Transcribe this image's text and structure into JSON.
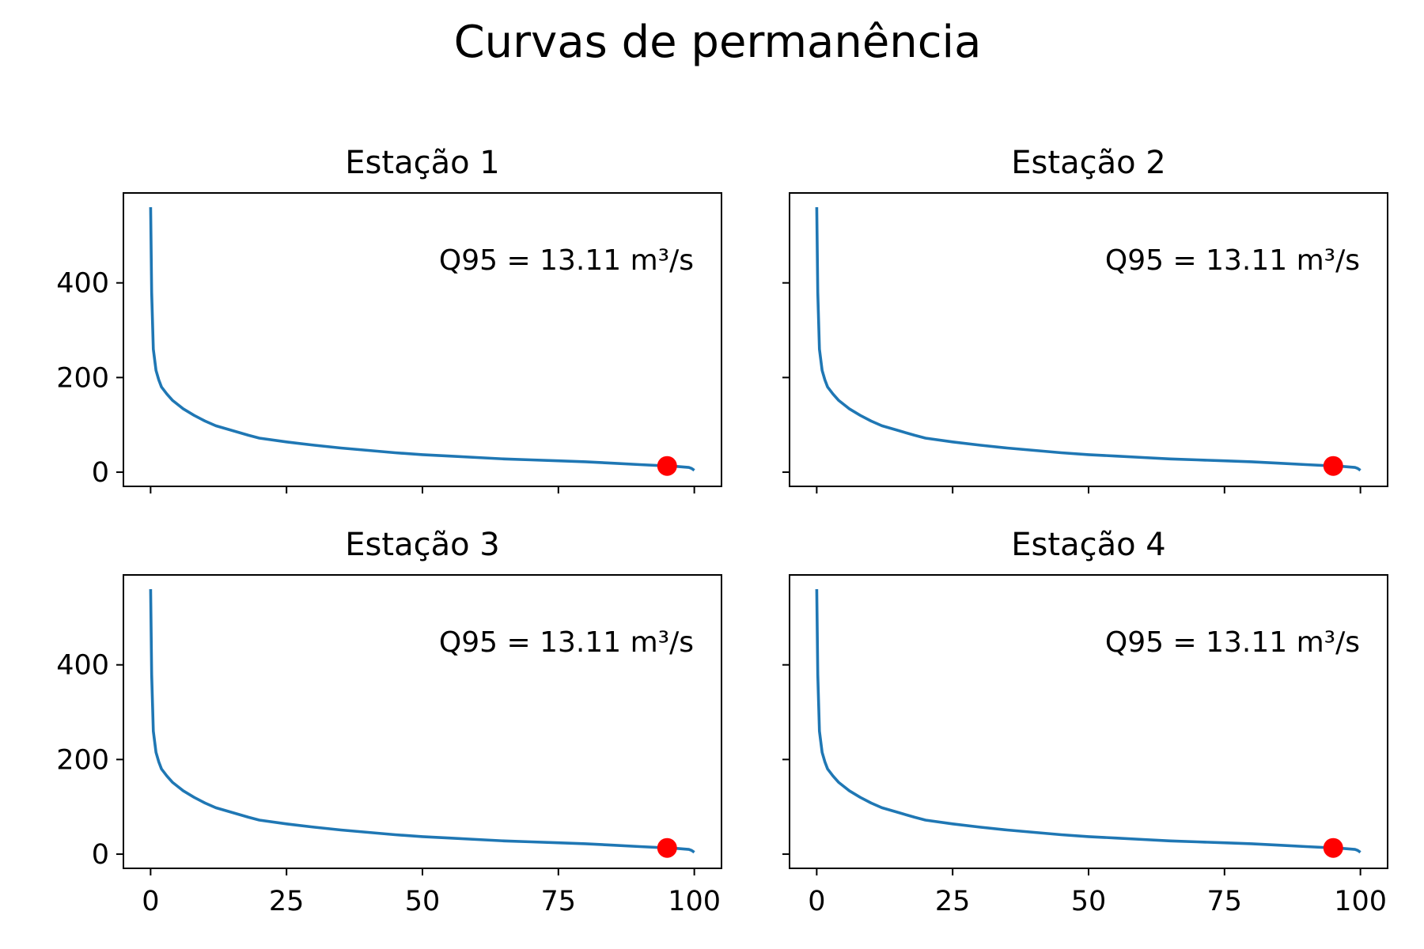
{
  "figure": {
    "title": "Curvas de permanência"
  },
  "chart_data": [
    {
      "type": "line",
      "title": "Estação 1",
      "annotation": "Q95 = 13.11 m³/s",
      "xlabel": "",
      "ylabel": "",
      "xlim": [
        -5,
        105
      ],
      "ylim": [
        -30,
        590
      ],
      "xticks": [
        0,
        25,
        50,
        75,
        100
      ],
      "yticks": [
        0,
        200,
        400
      ],
      "grid": false,
      "series": [
        {
          "color": "#1f77b4",
          "x": [
            0,
            0.2,
            0.5,
            1,
            1.5,
            2,
            3,
            4,
            5,
            6,
            8,
            10,
            12,
            15,
            18,
            20,
            25,
            30,
            35,
            40,
            45,
            50,
            55,
            60,
            65,
            70,
            75,
            80,
            85,
            90,
            95,
            97,
            99,
            99.5,
            100
          ],
          "y": [
            560,
            380,
            260,
            215,
            195,
            180,
            165,
            152,
            143,
            134,
            120,
            108,
            98,
            88,
            78,
            72,
            64,
            57,
            51,
            46,
            41,
            37,
            34,
            31,
            28,
            26,
            24,
            22,
            19,
            16,
            13.11,
            12,
            10,
            8,
            4
          ]
        }
      ],
      "highlight": {
        "x": 95,
        "y": 13.11,
        "color": "#ff0000"
      }
    },
    {
      "type": "line",
      "title": "Estação 2",
      "annotation": "Q95 = 13.11 m³/s",
      "xlabel": "",
      "ylabel": "",
      "xlim": [
        -5,
        105
      ],
      "ylim": [
        -30,
        590
      ],
      "xticks": [
        0,
        25,
        50,
        75,
        100
      ],
      "yticks": [
        0,
        200,
        400
      ],
      "grid": false,
      "series": [
        {
          "color": "#1f77b4",
          "x": [
            0,
            0.2,
            0.5,
            1,
            1.5,
            2,
            3,
            4,
            5,
            6,
            8,
            10,
            12,
            15,
            18,
            20,
            25,
            30,
            35,
            40,
            45,
            50,
            55,
            60,
            65,
            70,
            75,
            80,
            85,
            90,
            95,
            97,
            99,
            99.5,
            100
          ],
          "y": [
            560,
            380,
            260,
            215,
            195,
            180,
            165,
            152,
            143,
            134,
            120,
            108,
            98,
            88,
            78,
            72,
            64,
            57,
            51,
            46,
            41,
            37,
            34,
            31,
            28,
            26,
            24,
            22,
            19,
            16,
            13.11,
            12,
            10,
            8,
            4
          ]
        }
      ],
      "highlight": {
        "x": 95,
        "y": 13.11,
        "color": "#ff0000"
      }
    },
    {
      "type": "line",
      "title": "Estação 3",
      "annotation": "Q95 = 13.11 m³/s",
      "xlabel": "",
      "ylabel": "",
      "xlim": [
        -5,
        105
      ],
      "ylim": [
        -30,
        590
      ],
      "xticks": [
        0,
        25,
        50,
        75,
        100
      ],
      "yticks": [
        0,
        200,
        400
      ],
      "grid": false,
      "series": [
        {
          "color": "#1f77b4",
          "x": [
            0,
            0.2,
            0.5,
            1,
            1.5,
            2,
            3,
            4,
            5,
            6,
            8,
            10,
            12,
            15,
            18,
            20,
            25,
            30,
            35,
            40,
            45,
            50,
            55,
            60,
            65,
            70,
            75,
            80,
            85,
            90,
            95,
            97,
            99,
            99.5,
            100
          ],
          "y": [
            560,
            380,
            260,
            215,
            195,
            180,
            165,
            152,
            143,
            134,
            120,
            108,
            98,
            88,
            78,
            72,
            64,
            57,
            51,
            46,
            41,
            37,
            34,
            31,
            28,
            26,
            24,
            22,
            19,
            16,
            13.11,
            12,
            10,
            8,
            4
          ]
        }
      ],
      "highlight": {
        "x": 95,
        "y": 13.11,
        "color": "#ff0000"
      }
    },
    {
      "type": "line",
      "title": "Estação 4",
      "annotation": "Q95 = 13.11 m³/s",
      "xlabel": "",
      "ylabel": "",
      "xlim": [
        -5,
        105
      ],
      "ylim": [
        -30,
        590
      ],
      "xticks": [
        0,
        25,
        50,
        75,
        100
      ],
      "yticks": [
        0,
        200,
        400
      ],
      "grid": false,
      "series": [
        {
          "color": "#1f77b4",
          "x": [
            0,
            0.2,
            0.5,
            1,
            1.5,
            2,
            3,
            4,
            5,
            6,
            8,
            10,
            12,
            15,
            18,
            20,
            25,
            30,
            35,
            40,
            45,
            50,
            55,
            60,
            65,
            70,
            75,
            80,
            85,
            90,
            95,
            97,
            99,
            99.5,
            100
          ],
          "y": [
            560,
            380,
            260,
            215,
            195,
            180,
            165,
            152,
            143,
            134,
            120,
            108,
            98,
            88,
            78,
            72,
            64,
            57,
            51,
            46,
            41,
            37,
            34,
            31,
            28,
            26,
            24,
            22,
            19,
            16,
            13.11,
            12,
            10,
            8,
            4
          ]
        }
      ],
      "highlight": {
        "x": 95,
        "y": 13.11,
        "color": "#ff0000"
      }
    }
  ]
}
